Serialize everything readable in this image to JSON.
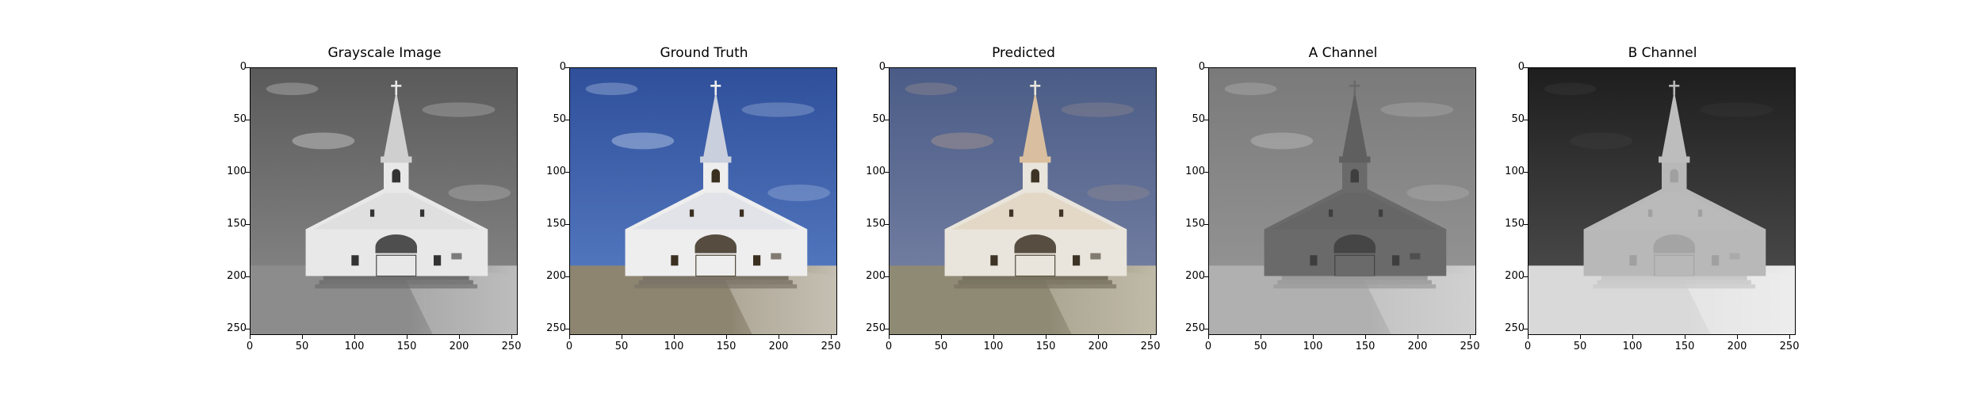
{
  "panels": [
    {
      "title": "Grayscale Image",
      "variant": "gray"
    },
    {
      "title": "Ground Truth",
      "variant": "truth"
    },
    {
      "title": "Predicted",
      "variant": "pred"
    },
    {
      "title": "A Channel",
      "variant": "a"
    },
    {
      "title": "B Channel",
      "variant": "b"
    }
  ],
  "axes": {
    "x_ticks": [
      "0",
      "50",
      "100",
      "150",
      "200",
      "250"
    ],
    "y_ticks": [
      "0",
      "50",
      "100",
      "150",
      "200",
      "250"
    ],
    "range": [
      0,
      256
    ]
  }
}
